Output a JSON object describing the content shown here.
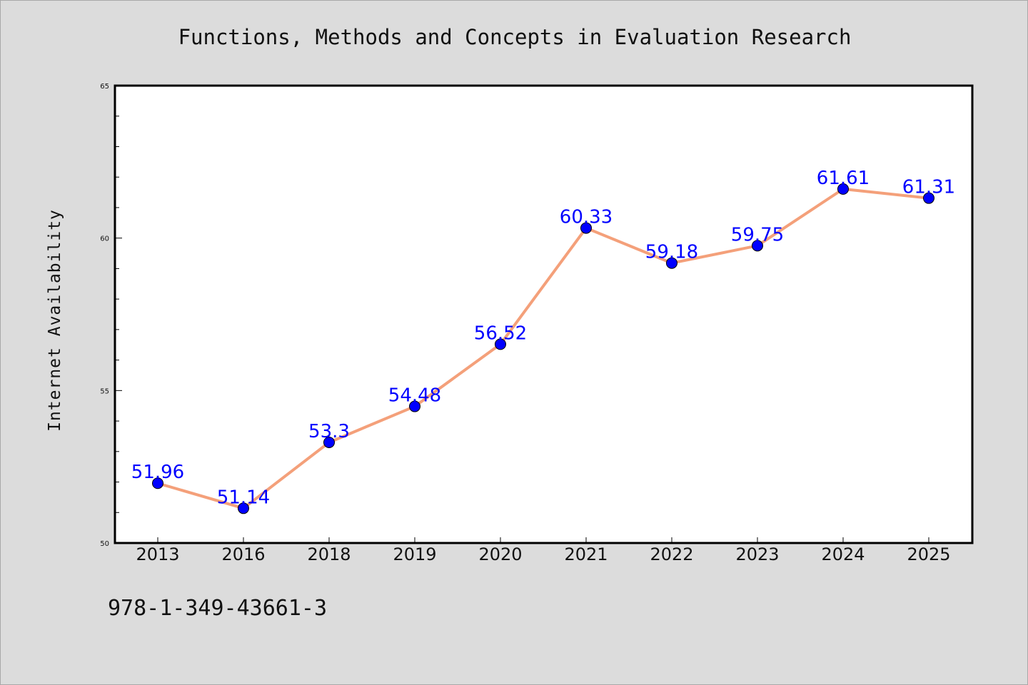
{
  "chart_data": {
    "type": "line",
    "title": "Functions, Methods and Concepts in Evaluation Research",
    "xlabel": "",
    "ylabel": "Internet Availability",
    "categories": [
      "2013",
      "2016",
      "2018",
      "2019",
      "2020",
      "2021",
      "2022",
      "2023",
      "2024",
      "2025"
    ],
    "series": [
      {
        "values": [
          51.96,
          51.14,
          53.3,
          54.48,
          56.52,
          60.33,
          59.18,
          59.75,
          61.61,
          61.31
        ],
        "line_color": "#f4a07a",
        "marker_color": "#0000ff"
      }
    ],
    "data_labels": [
      "51.96",
      "51.14",
      "53.3",
      "54.48",
      "56.52",
      "60.33",
      "59.18",
      "59.75",
      "61.61",
      "61.31"
    ],
    "ylim": [
      50,
      65
    ],
    "yticks": [
      "50",
      "55",
      "60",
      "65"
    ],
    "grid": false,
    "legend": "none"
  },
  "footer": {
    "text": "978-1-349-43661-3"
  },
  "colors": {
    "background": "#dcdcdc",
    "plot_background": "#ffffff",
    "line": "#f4a07a",
    "marker": "#0000ff",
    "label": "#0000ff"
  }
}
